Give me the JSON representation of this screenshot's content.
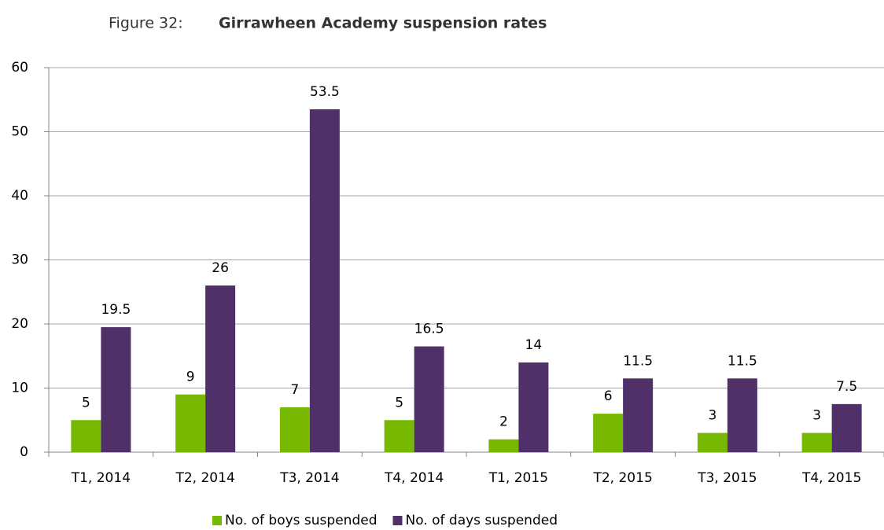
{
  "chart_data": {
    "type": "bar",
    "figure_label": "Figure 32:",
    "title": "Girrawheen Academy suspension rates",
    "categories": [
      "T1, 2014",
      "T2, 2014",
      "T3, 2014",
      "T4, 2014",
      "T1, 2015",
      "T2, 2015",
      "T3, 2015",
      "T4, 2015"
    ],
    "series": [
      {
        "name": "No. of boys suspended",
        "color": "#76b900",
        "values": [
          5,
          9,
          7,
          5,
          2,
          6,
          3,
          3
        ]
      },
      {
        "name": "No. of days suspended",
        "color": "#4f3068",
        "values": [
          19.5,
          26,
          53.5,
          16.5,
          14,
          11.5,
          11.5,
          7.5
        ]
      }
    ],
    "ylim": [
      0,
      60
    ],
    "yticks": [
      0,
      10,
      20,
      30,
      40,
      50,
      60
    ],
    "grid": true,
    "legend": "bottom"
  }
}
